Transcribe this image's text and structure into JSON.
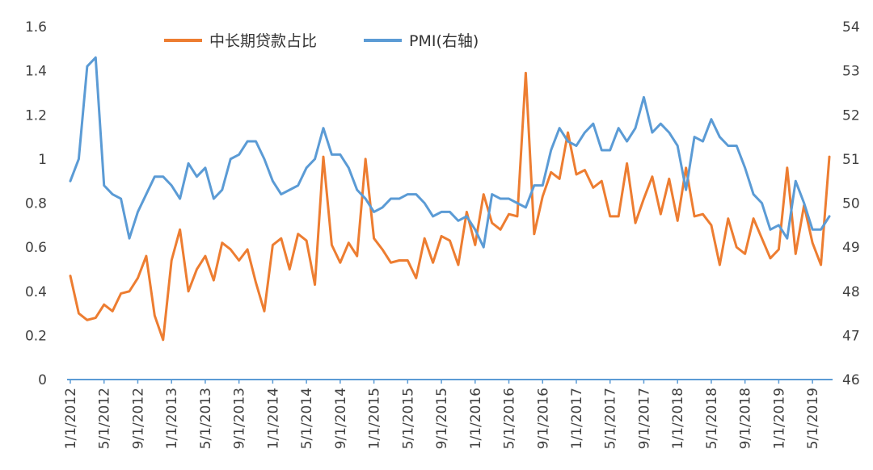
{
  "chart_data": {
    "type": "line",
    "title": "",
    "xlabel": "",
    "ylabel": "",
    "ylim": [
      0,
      1.6
    ],
    "y2lim": [
      46,
      54
    ],
    "y_ticks": [
      "0",
      "0.2",
      "0.4",
      "0.6",
      "0.8",
      "1",
      "1.2",
      "1.4",
      "1.6"
    ],
    "y2_ticks": [
      "46",
      "47",
      "48",
      "49",
      "50",
      "51",
      "52",
      "53",
      "54"
    ],
    "x_tick_labels": [
      "1/1/2012",
      "5/1/2012",
      "9/1/2012",
      "1/1/2013",
      "5/1/2013",
      "9/1/2013",
      "1/1/2014",
      "5/1/2014",
      "9/1/2014",
      "1/1/2015",
      "5/1/2015",
      "9/1/2015",
      "1/1/2016",
      "5/1/2016",
      "9/1/2016",
      "1/1/2017",
      "5/1/2017",
      "9/1/2017",
      "1/1/2018",
      "5/1/2018",
      "9/1/2018",
      "1/1/2019",
      "5/1/2019"
    ],
    "x_start": "2012-01",
    "x_end": "2019-10",
    "grid": false,
    "legend_position": "top",
    "colors": {
      "series1": "#ED7D31",
      "series2": "#5B9BD5",
      "axis": "#5B9BD5",
      "text": "#404040"
    },
    "series": [
      {
        "name": "中长期贷款占比",
        "axis": "left",
        "values": [
          0.47,
          0.3,
          0.27,
          0.28,
          0.34,
          0.31,
          0.39,
          0.4,
          0.46,
          0.56,
          0.29,
          0.18,
          0.54,
          0.68,
          0.4,
          0.5,
          0.56,
          0.45,
          0.62,
          0.59,
          0.54,
          0.59,
          0.44,
          0.31,
          0.61,
          0.64,
          0.5,
          0.66,
          0.63,
          0.43,
          1.01,
          0.61,
          0.53,
          0.62,
          0.56,
          1.0,
          0.64,
          0.59,
          0.53,
          0.54,
          0.54,
          0.46,
          0.64,
          0.53,
          0.65,
          0.63,
          0.52,
          0.76,
          0.61,
          0.84,
          0.71,
          0.68,
          0.75,
          0.74,
          1.39,
          0.66,
          0.83,
          0.94,
          0.91,
          1.12,
          0.93,
          0.95,
          0.87,
          0.9,
          0.74,
          0.74,
          0.98,
          0.71,
          0.82,
          0.92,
          0.75,
          0.91,
          0.72,
          0.96,
          0.74,
          0.75,
          0.7,
          0.52,
          0.73,
          0.6,
          0.57,
          0.73,
          0.64,
          0.55,
          0.59,
          0.96,
          0.57,
          0.79,
          0.62,
          0.52,
          1.01
        ]
      },
      {
        "name": "PMI(右轴)",
        "axis": "right",
        "values": [
          50.5,
          51.0,
          53.1,
          53.3,
          50.4,
          50.2,
          50.1,
          49.2,
          49.8,
          50.2,
          50.6,
          50.6,
          50.4,
          50.1,
          50.9,
          50.6,
          50.8,
          50.1,
          50.3,
          51.0,
          51.1,
          51.4,
          51.4,
          51.0,
          50.5,
          50.2,
          50.3,
          50.4,
          50.8,
          51.0,
          51.7,
          51.1,
          51.1,
          50.8,
          50.3,
          50.1,
          49.8,
          49.9,
          50.1,
          50.1,
          50.2,
          50.2,
          50.0,
          49.7,
          49.8,
          49.8,
          49.6,
          49.7,
          49.4,
          49.0,
          50.2,
          50.1,
          50.1,
          50.0,
          49.9,
          50.4,
          50.4,
          51.2,
          51.7,
          51.4,
          51.3,
          51.6,
          51.8,
          51.2,
          51.2,
          51.7,
          51.4,
          51.7,
          52.4,
          51.6,
          51.8,
          51.6,
          51.3,
          50.3,
          51.5,
          51.4,
          51.9,
          51.5,
          51.3,
          51.3,
          50.8,
          50.2,
          50.0,
          49.4,
          49.5,
          49.2,
          50.5,
          50.0,
          49.4,
          49.4,
          49.7
        ]
      }
    ]
  }
}
